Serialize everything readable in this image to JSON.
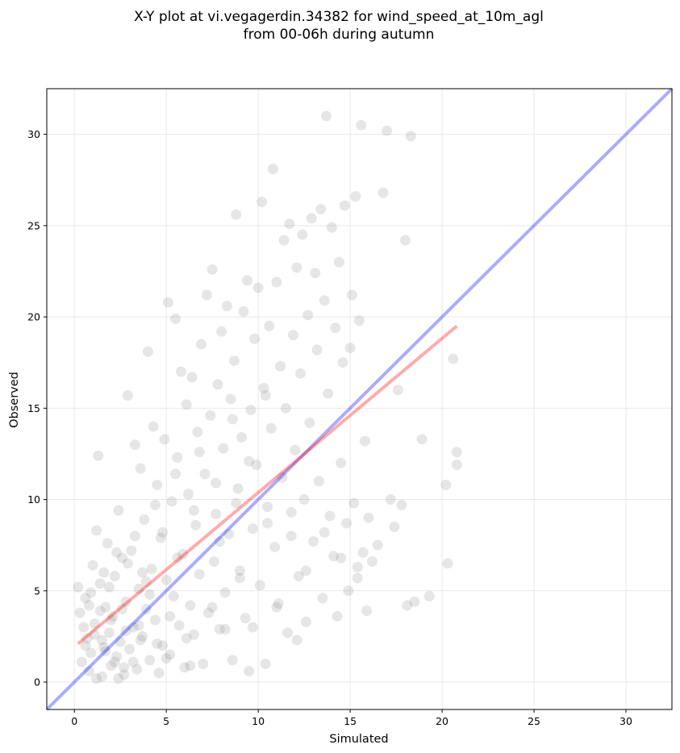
{
  "chart_data": {
    "type": "scatter",
    "title_lines": [
      "X-Y plot at vi.vegagerdin.34382 for wind_speed_at_10m_agl",
      "from 00-06h during autumn"
    ],
    "xlabel": "Simulated",
    "ylabel": "Observed",
    "xlim": [
      -1.5,
      32.5
    ],
    "ylim": [
      -1.5,
      32.5
    ],
    "xticks": [
      0,
      5,
      10,
      15,
      20,
      25,
      30
    ],
    "yticks": [
      0,
      5,
      10,
      15,
      20,
      25,
      30
    ],
    "grid": true,
    "point_color": "#808080",
    "points_sample": [
      [
        0.2,
        5.2
      ],
      [
        0.3,
        3.8
      ],
      [
        0.4,
        1.1
      ],
      [
        0.5,
        3.0
      ],
      [
        0.6,
        4.6
      ],
      [
        0.7,
        2.4
      ],
      [
        0.8,
        0.6
      ],
      [
        0.9,
        1.6
      ],
      [
        1.0,
        6.4
      ],
      [
        1.1,
        3.2
      ],
      [
        1.2,
        8.3
      ],
      [
        1.3,
        12.4
      ],
      [
        1.4,
        5.4
      ],
      [
        1.5,
        0.3
      ],
      [
        1.6,
        1.9
      ],
      [
        1.7,
        4.1
      ],
      [
        1.8,
        7.6
      ],
      [
        1.9,
        2.7
      ],
      [
        2.0,
        0.9
      ],
      [
        2.1,
        3.6
      ],
      [
        2.2,
        5.8
      ],
      [
        2.3,
        1.4
      ],
      [
        2.4,
        9.4
      ],
      [
        2.5,
        2.2
      ],
      [
        2.6,
        6.8
      ],
      [
        2.7,
        0.4
      ],
      [
        2.8,
        4.4
      ],
      [
        2.9,
        15.7
      ],
      [
        3.0,
        1.8
      ],
      [
        3.1,
        7.2
      ],
      [
        3.2,
        3.0
      ],
      [
        3.3,
        13.0
      ],
      [
        3.4,
        0.7
      ],
      [
        3.5,
        5.1
      ],
      [
        3.6,
        11.7
      ],
      [
        3.7,
        2.5
      ],
      [
        3.8,
        8.9
      ],
      [
        3.9,
        4.0
      ],
      [
        4.0,
        18.1
      ],
      [
        4.1,
        1.2
      ],
      [
        4.2,
        6.2
      ],
      [
        4.3,
        14.0
      ],
      [
        4.4,
        3.4
      ],
      [
        4.5,
        10.8
      ],
      [
        4.6,
        0.5
      ],
      [
        4.7,
        7.9
      ],
      [
        4.8,
        2.0
      ],
      [
        4.9,
        13.3
      ],
      [
        5.0,
        5.6
      ],
      [
        5.1,
        20.8
      ],
      [
        5.2,
        1.5
      ],
      [
        5.3,
        9.9
      ],
      [
        5.4,
        4.7
      ],
      [
        5.5,
        19.9
      ],
      [
        5.6,
        12.3
      ],
      [
        5.7,
        3.1
      ],
      [
        5.8,
        17.0
      ],
      [
        5.9,
        7.0
      ],
      [
        6.0,
        0.8
      ],
      [
        6.1,
        15.2
      ],
      [
        6.2,
        10.3
      ],
      [
        6.3,
        4.2
      ],
      [
        6.4,
        16.7
      ],
      [
        6.5,
        2.6
      ],
      [
        6.6,
        8.6
      ],
      [
        6.7,
        13.7
      ],
      [
        6.8,
        5.9
      ],
      [
        6.9,
        18.5
      ],
      [
        7.0,
        1.0
      ],
      [
        7.1,
        11.4
      ],
      [
        7.2,
        21.2
      ],
      [
        7.3,
        3.8
      ],
      [
        7.4,
        14.6
      ],
      [
        7.5,
        22.6
      ],
      [
        7.6,
        6.6
      ],
      [
        7.7,
        9.2
      ],
      [
        7.8,
        16.3
      ],
      [
        7.9,
        2.9
      ],
      [
        8.0,
        19.2
      ],
      [
        8.1,
        12.8
      ],
      [
        8.2,
        4.9
      ],
      [
        8.3,
        20.6
      ],
      [
        8.4,
        8.1
      ],
      [
        8.5,
        15.5
      ],
      [
        8.6,
        1.2
      ],
      [
        8.7,
        17.6
      ],
      [
        8.8,
        25.6
      ],
      [
        8.9,
        10.6
      ],
      [
        9.0,
        6.1
      ],
      [
        9.1,
        13.4
      ],
      [
        9.2,
        20.3
      ],
      [
        9.3,
        3.5
      ],
      [
        9.4,
        22.0
      ],
      [
        9.5,
        0.6
      ],
      [
        9.6,
        14.9
      ],
      [
        9.7,
        8.4
      ],
      [
        9.8,
        18.8
      ],
      [
        9.9,
        11.9
      ],
      [
        10.0,
        21.6
      ],
      [
        10.1,
        5.3
      ],
      [
        10.2,
        26.3
      ],
      [
        10.3,
        16.1
      ],
      [
        10.4,
        1.0
      ],
      [
        10.5,
        9.6
      ],
      [
        10.6,
        19.5
      ],
      [
        10.7,
        13.9
      ],
      [
        10.8,
        28.1
      ],
      [
        10.9,
        7.4
      ],
      [
        11.0,
        21.9
      ],
      [
        11.1,
        4.3
      ],
      [
        11.2,
        17.3
      ],
      [
        11.3,
        11.2
      ],
      [
        11.4,
        24.2
      ],
      [
        11.5,
        15.0
      ],
      [
        11.6,
        2.7
      ],
      [
        11.7,
        25.1
      ],
      [
        11.8,
        8.0
      ],
      [
        11.9,
        19.0
      ],
      [
        12.0,
        12.7
      ],
      [
        12.1,
        22.7
      ],
      [
        12.2,
        5.8
      ],
      [
        12.3,
        16.9
      ],
      [
        12.4,
        24.5
      ],
      [
        12.5,
        10.0
      ],
      [
        12.6,
        3.3
      ],
      [
        12.7,
        20.1
      ],
      [
        12.8,
        14.2
      ],
      [
        12.9,
        25.4
      ],
      [
        13.0,
        7.7
      ],
      [
        13.1,
        22.4
      ],
      [
        13.2,
        18.2
      ],
      [
        13.3,
        11.0
      ],
      [
        13.4,
        25.9
      ],
      [
        13.5,
        4.6
      ],
      [
        13.6,
        20.9
      ],
      [
        13.7,
        31.0
      ],
      [
        13.8,
        15.8
      ],
      [
        13.9,
        9.1
      ],
      [
        14.0,
        24.9
      ],
      [
        14.1,
        6.9
      ],
      [
        14.2,
        19.4
      ],
      [
        14.3,
        3.6
      ],
      [
        14.4,
        23.0
      ],
      [
        14.5,
        12.0
      ],
      [
        14.6,
        17.5
      ],
      [
        14.7,
        26.1
      ],
      [
        14.8,
        8.7
      ],
      [
        14.9,
        5.0
      ],
      [
        15.0,
        18.3
      ],
      [
        15.1,
        21.2
      ],
      [
        15.2,
        9.8
      ],
      [
        15.3,
        26.6
      ],
      [
        15.4,
        6.3
      ],
      [
        15.5,
        19.8
      ],
      [
        15.6,
        30.5
      ],
      [
        15.7,
        7.1
      ],
      [
        15.8,
        13.2
      ],
      [
        15.9,
        3.9
      ],
      [
        16.0,
        9.0
      ],
      [
        16.2,
        6.6
      ],
      [
        16.5,
        7.5
      ],
      [
        16.8,
        26.8
      ],
      [
        17.0,
        30.2
      ],
      [
        17.2,
        10.0
      ],
      [
        17.4,
        8.5
      ],
      [
        17.6,
        16.0
      ],
      [
        17.8,
        9.7
      ],
      [
        18.0,
        24.2
      ],
      [
        18.1,
        4.2
      ],
      [
        18.3,
        29.9
      ],
      [
        18.5,
        4.4
      ],
      [
        18.9,
        13.3
      ],
      [
        19.3,
        4.7
      ],
      [
        20.2,
        10.8
      ],
      [
        20.3,
        6.5
      ],
      [
        20.6,
        17.7
      ],
      [
        20.8,
        12.6
      ],
      [
        20.8,
        11.9
      ],
      [
        0.9,
        4.9
      ],
      [
        1.5,
        2.3
      ],
      [
        2.2,
        1.1
      ],
      [
        2.8,
        2.8
      ],
      [
        1.2,
        0.2
      ],
      [
        3.5,
        3.1
      ],
      [
        4.1,
        4.8
      ],
      [
        1.7,
        1.7
      ],
      [
        2.4,
        0.2
      ],
      [
        0.6,
        2.0
      ],
      [
        1.9,
        5.2
      ],
      [
        2.6,
        4.0
      ],
      [
        3.2,
        1.1
      ],
      [
        1.1,
        2.6
      ],
      [
        2.0,
        3.4
      ],
      [
        4.5,
        2.1
      ],
      [
        3.7,
        6.0
      ],
      [
        5.2,
        3.6
      ],
      [
        6.1,
        2.4
      ],
      [
        7.5,
        4.1
      ],
      [
        8.2,
        2.9
      ],
      [
        9.0,
        5.7
      ],
      [
        1.4,
        3.9
      ],
      [
        2.9,
        6.5
      ],
      [
        4.8,
        8.2
      ],
      [
        6.5,
        9.4
      ],
      [
        5.6,
        6.8
      ],
      [
        7.9,
        7.7
      ],
      [
        8.8,
        9.8
      ],
      [
        10.5,
        8.7
      ],
      [
        11.8,
        9.3
      ],
      [
        12.6,
        6.1
      ],
      [
        13.6,
        8.2
      ],
      [
        14.5,
        6.8
      ],
      [
        15.4,
        5.7
      ],
      [
        11.0,
        4.1
      ],
      [
        9.7,
        3.0
      ],
      [
        12.1,
        2.3
      ],
      [
        3.3,
        8.0
      ],
      [
        4.4,
        9.7
      ],
      [
        5.5,
        11.4
      ],
      [
        6.8,
        12.6
      ],
      [
        7.7,
        10.9
      ],
      [
        8.6,
        14.4
      ],
      [
        9.5,
        12.1
      ],
      [
        10.4,
        15.7
      ],
      [
        2.3,
        7.1
      ],
      [
        3.9,
        5.5
      ],
      [
        1.6,
        6.0
      ],
      [
        0.8,
        4.2
      ],
      [
        2.7,
        0.8
      ],
      [
        3.6,
        2.3
      ],
      [
        5.0,
        1.3
      ],
      [
        6.3,
        0.9
      ]
    ],
    "regression_line": {
      "color": "#ff0000",
      "x": [
        0.2,
        20.8
      ],
      "y": [
        2.1,
        19.5
      ]
    },
    "identity_line": {
      "color": "#0000ff",
      "x": [
        -1.5,
        32.5
      ],
      "y": [
        -1.5,
        32.5
      ]
    }
  }
}
